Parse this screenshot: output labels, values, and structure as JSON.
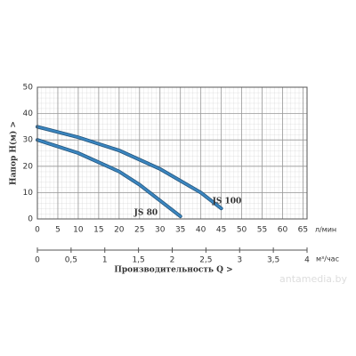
{
  "chart_data": {
    "type": "line",
    "y_label": "Напор  H(м)  >",
    "x_unit": "л/мин",
    "x2_unit": "м³/час",
    "x2_label": "Производительность Q  >",
    "watermark": "antamedia.by",
    "xlim": [
      0,
      66
    ],
    "xticks": [
      0,
      5,
      10,
      15,
      20,
      25,
      30,
      35,
      40,
      45,
      50,
      55,
      60,
      65
    ],
    "ylim": [
      0,
      50
    ],
    "yticks": [
      0,
      10,
      20,
      30,
      40,
      50
    ],
    "x2lim": [
      0,
      4
    ],
    "x2ticks": [
      0,
      {
        "value": 0.5,
        "label": "0,5"
      },
      1,
      {
        "value": 1.5,
        "label": "1,5"
      },
      2,
      {
        "value": 2.5,
        "label": "2,5"
      },
      3,
      {
        "value": 3.5,
        "label": "3,5"
      },
      4
    ],
    "grid": true,
    "series": [
      {
        "name": "JS 100",
        "color": "#3b86c0",
        "x": [
          0,
          10,
          20,
          30,
          40,
          45
        ],
        "values": [
          35,
          31,
          26,
          19,
          10,
          4
        ]
      },
      {
        "name": "JS 80",
        "color": "#3b86c0",
        "x": [
          0,
          10,
          20,
          25,
          30,
          35
        ],
        "values": [
          30,
          25,
          18,
          13,
          7,
          1
        ]
      }
    ]
  }
}
